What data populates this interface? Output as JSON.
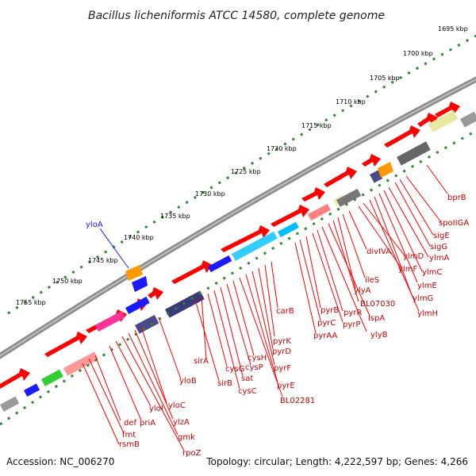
{
  "title": "Bacillus licheniformis ATCC 14580, complete genome",
  "accession": "Accession: NC_006270",
  "topology": "Topology: circular; Length: 4,222,597 bp; Genes: 4,266",
  "ticks": [
    "1695 kbp",
    "1700 kbp",
    "1705 kbp",
    "1710 kbp",
    "1715 kbp",
    "1720 kbp",
    "1725 kbp",
    "1730 kbp",
    "1735 kbp",
    "1740 kbp",
    "1745 kbp",
    "1750 kbp",
    "1755 kbp"
  ],
  "genes": [
    "bprB",
    "spoIIGA",
    "sigE",
    "sigG",
    "ylmA",
    "ylmC",
    "ylmE",
    "ylmG",
    "ylmH",
    "ylmD",
    "ylmF",
    "divIVA",
    "ileS",
    "ylyA",
    "BL07030",
    "lspA",
    "ylyB",
    "pyrR",
    "pyrP",
    "pyrB",
    "pyrC",
    "pyrAA",
    "carB",
    "pyrK",
    "pyrD",
    "pyrF",
    "pyrE",
    "BL02281",
    "cysH",
    "cysP",
    "sat",
    "cysC",
    "cysG",
    "sirA",
    "sirB",
    "yloB",
    "yloC",
    "ylzA",
    "gmk",
    "rpoZ",
    "yloI",
    "priA",
    "def",
    "fmt",
    "rsmB",
    "yloA"
  ],
  "colors": {
    "gene_red": "#ff0000",
    "label_red": "#cc0000",
    "tick_green": "#1f7a1f",
    "backbone": "#7a7a7a",
    "orange": "#ff9900",
    "blue": "#1a1aff"
  }
}
